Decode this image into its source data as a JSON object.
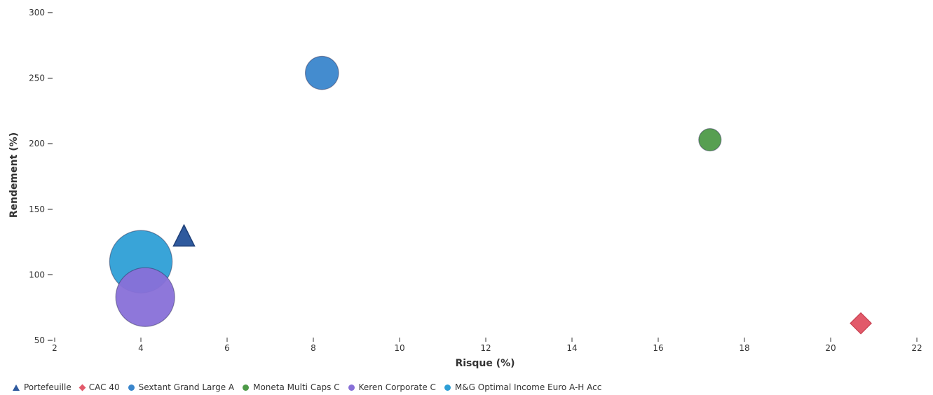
{
  "chart_data": {
    "type": "scatter",
    "title": "",
    "xlabel": "Risque (%)",
    "ylabel": "Rendement (%)",
    "xlim": [
      2,
      22
    ],
    "ylim": [
      50,
      300
    ],
    "x_ticks": [
      2,
      4,
      6,
      8,
      10,
      12,
      14,
      16,
      18,
      20,
      22
    ],
    "y_ticks": [
      50,
      100,
      150,
      200,
      250,
      300
    ],
    "grid": false,
    "legend_position": "bottom-left",
    "series": [
      {
        "name": "Portefeuille",
        "marker": "triangle",
        "color": "#2f5a9e",
        "x": 5.0,
        "y": 130,
        "size": 1
      },
      {
        "name": "CAC 40",
        "marker": "diamond",
        "color": "#e25a6a",
        "x": 20.7,
        "y": 63,
        "size": 1
      },
      {
        "name": "Sextant Grand Large A",
        "marker": "circle",
        "color": "#3a86cc",
        "x": 8.2,
        "y": 254,
        "size": 2.2
      },
      {
        "name": "Moneta Multi Caps C",
        "marker": "circle",
        "color": "#4e9a48",
        "x": 17.2,
        "y": 203,
        "size": 1
      },
      {
        "name": "M&G Optimal Income Euro A-H Acc",
        "marker": "circle",
        "color": "#2e9fd6",
        "x": 4.0,
        "y": 110,
        "size": 7.8
      },
      {
        "name": "Keren Corporate C",
        "marker": "circle",
        "color": "#8870d8",
        "x": 4.1,
        "y": 83,
        "size": 6.9
      }
    ]
  },
  "legend": [
    {
      "label": "Portefeuille",
      "marker": "triangle",
      "color": "#2f5a9e"
    },
    {
      "label": "CAC 40",
      "marker": "diamond",
      "color": "#e25a6a"
    },
    {
      "label": "Sextant Grand Large A",
      "marker": "circle",
      "color": "#3a86cc"
    },
    {
      "label": "Moneta Multi Caps C",
      "marker": "circle",
      "color": "#4e9a48"
    },
    {
      "label": "Keren Corporate C",
      "marker": "circle",
      "color": "#8870d8"
    },
    {
      "label": "M&G Optimal Income Euro A-H Acc",
      "marker": "circle",
      "color": "#2e9fd6"
    }
  ]
}
